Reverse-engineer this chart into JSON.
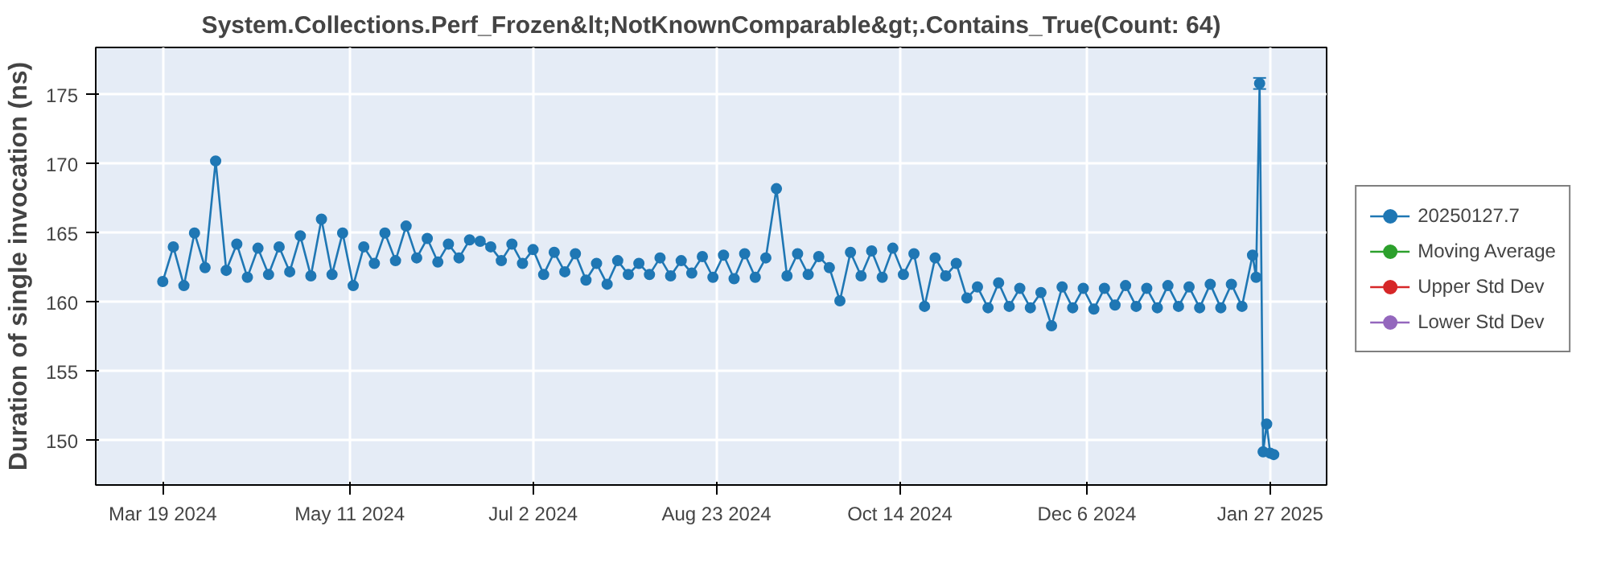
{
  "chart_data": {
    "type": "line",
    "title": "System.Collections.Perf_Frozen&lt;NotKnownComparable&gt;.Contains_True(Count: 64)",
    "ylabel": "Duration of single invocation (ns)",
    "xlim": [
      "2024-02-29",
      "2025-02-12"
    ],
    "xticks": [
      {
        "value": "2024-03-19",
        "label": "Mar 19 2024"
      },
      {
        "value": "2024-05-11",
        "label": "May 11 2024"
      },
      {
        "value": "2024-07-02",
        "label": "Jul 2 2024"
      },
      {
        "value": "2024-08-23",
        "label": "Aug 23 2024"
      },
      {
        "value": "2024-10-14",
        "label": "Oct 14 2024"
      },
      {
        "value": "2024-12-06",
        "label": "Dec 6 2024"
      },
      {
        "value": "2025-01-27",
        "label": "Jan 27 2025"
      }
    ],
    "ylim": [
      146.8,
      178.4
    ],
    "yticks": [
      150,
      155,
      160,
      165,
      170,
      175
    ],
    "grid": true,
    "legend": "right",
    "marker": "circle",
    "line_style": "solid",
    "x": [
      "2024-03-19",
      "2024-03-22",
      "2024-03-25",
      "2024-03-28",
      "2024-03-31",
      "2024-04-03",
      "2024-04-06",
      "2024-04-09",
      "2024-04-12",
      "2024-04-15",
      "2024-04-18",
      "2024-04-21",
      "2024-04-24",
      "2024-04-27",
      "2024-04-30",
      "2024-05-03",
      "2024-05-06",
      "2024-05-09",
      "2024-05-12",
      "2024-05-15",
      "2024-05-18",
      "2024-05-21",
      "2024-05-24",
      "2024-05-27",
      "2024-05-30",
      "2024-06-02",
      "2024-06-05",
      "2024-06-08",
      "2024-06-11",
      "2024-06-14",
      "2024-06-17",
      "2024-06-20",
      "2024-06-23",
      "2024-06-26",
      "2024-06-29",
      "2024-07-02",
      "2024-07-05",
      "2024-07-08",
      "2024-07-11",
      "2024-07-14",
      "2024-07-17",
      "2024-07-20",
      "2024-07-23",
      "2024-07-26",
      "2024-07-29",
      "2024-08-01",
      "2024-08-04",
      "2024-08-07",
      "2024-08-10",
      "2024-08-13",
      "2024-08-16",
      "2024-08-19",
      "2024-08-22",
      "2024-08-25",
      "2024-08-28",
      "2024-08-31",
      "2024-09-03",
      "2024-09-06",
      "2024-09-09",
      "2024-09-12",
      "2024-09-15",
      "2024-09-18",
      "2024-09-21",
      "2024-09-24",
      "2024-09-27",
      "2024-09-30",
      "2024-10-03",
      "2024-10-06",
      "2024-10-09",
      "2024-10-12",
      "2024-10-15",
      "2024-10-18",
      "2024-10-21",
      "2024-10-24",
      "2024-10-27",
      "2024-10-30",
      "2024-11-02",
      "2024-11-05",
      "2024-11-08",
      "2024-11-11",
      "2024-11-14",
      "2024-11-17",
      "2024-11-20",
      "2024-11-23",
      "2024-11-26",
      "2024-11-29",
      "2024-12-02",
      "2024-12-05",
      "2024-12-08",
      "2024-12-11",
      "2024-12-14",
      "2024-12-17",
      "2024-12-20",
      "2024-12-23",
      "2024-12-26",
      "2024-12-29",
      "2025-01-01",
      "2025-01-04",
      "2025-01-07",
      "2025-01-10",
      "2025-01-13",
      "2025-01-16",
      "2025-01-19",
      "2025-01-22",
      "2025-01-23",
      "2025-01-24",
      "2025-01-25",
      "2025-01-26",
      "2025-01-27",
      "2025-01-28"
    ],
    "series": [
      {
        "name": "20250127.7",
        "color": "#1f77b4",
        "values": [
          161.5,
          164.0,
          161.2,
          165.0,
          162.5,
          170.2,
          162.3,
          164.2,
          161.8,
          163.9,
          162.0,
          164.0,
          162.2,
          164.8,
          161.9,
          166.0,
          162.0,
          165.0,
          161.2,
          164.0,
          162.8,
          165.0,
          163.0,
          165.5,
          163.2,
          164.6,
          162.9,
          164.2,
          163.2,
          164.5,
          164.4,
          164.0,
          163.0,
          164.2,
          162.8,
          163.8,
          162.0,
          163.6,
          162.2,
          163.5,
          161.6,
          162.8,
          161.3,
          163.0,
          162.0,
          162.8,
          162.0,
          163.2,
          161.9,
          163.0,
          162.1,
          163.3,
          161.8,
          163.4,
          161.7,
          163.5,
          161.8,
          163.2,
          168.2,
          161.9,
          163.5,
          162.0,
          163.3,
          162.5,
          160.1,
          163.6,
          161.9,
          163.7,
          161.8,
          163.9,
          162.0,
          163.5,
          159.7,
          163.2,
          161.9,
          162.8,
          160.3,
          161.1,
          159.6,
          161.4,
          159.7,
          161.0,
          159.6,
          160.7,
          158.3,
          161.1,
          159.6,
          161.0,
          159.5,
          161.0,
          159.8,
          161.2,
          159.7,
          161.0,
          159.6,
          161.2,
          159.7,
          161.1,
          159.6,
          161.3,
          159.6,
          161.3,
          159.7,
          163.4,
          161.8,
          175.8,
          149.2,
          151.2,
          149.1,
          149.0
        ],
        "errors": [
          null,
          null,
          null,
          null,
          null,
          null,
          null,
          null,
          null,
          null,
          null,
          null,
          null,
          null,
          null,
          null,
          null,
          null,
          null,
          null,
          null,
          null,
          null,
          null,
          null,
          null,
          null,
          null,
          null,
          null,
          null,
          null,
          null,
          null,
          null,
          null,
          null,
          null,
          null,
          null,
          null,
          null,
          null,
          null,
          null,
          null,
          null,
          null,
          null,
          null,
          null,
          null,
          null,
          null,
          null,
          null,
          null,
          null,
          null,
          null,
          null,
          null,
          null,
          null,
          null,
          null,
          null,
          null,
          null,
          null,
          null,
          null,
          null,
          null,
          null,
          null,
          null,
          null,
          null,
          null,
          null,
          null,
          null,
          null,
          null,
          null,
          null,
          null,
          null,
          null,
          null,
          null,
          null,
          null,
          null,
          null,
          null,
          null,
          null,
          null,
          null,
          null,
          null,
          null,
          null,
          0.4,
          null,
          null,
          null,
          null
        ]
      },
      {
        "name": "Moving Average",
        "color": "#2ca02c",
        "values": [
          null,
          null,
          null,
          null,
          null,
          null,
          null,
          null,
          null,
          null,
          null,
          null,
          null,
          null,
          null,
          null,
          null,
          null,
          null,
          null,
          null,
          null,
          null,
          null,
          null,
          null,
          null,
          null,
          null,
          null,
          null,
          null,
          null,
          null,
          null,
          null,
          null,
          null,
          null,
          null,
          null,
          null,
          null,
          null,
          null,
          null,
          null,
          null,
          null,
          null,
          null,
          null,
          null,
          null,
          null,
          null,
          null,
          null,
          null,
          null,
          null,
          null,
          null,
          null,
          null,
          null,
          null,
          null,
          null,
          null,
          null,
          null,
          null,
          null,
          null,
          null,
          null,
          null,
          null,
          null,
          null,
          null,
          null,
          null,
          null,
          null,
          null,
          null,
          null,
          null,
          null,
          null,
          null,
          null,
          null,
          null,
          null,
          null,
          null,
          null,
          null,
          null,
          null,
          null,
          null,
          null,
          null,
          null,
          null,
          null
        ]
      },
      {
        "name": "Upper Std Dev",
        "color": "#d62728",
        "values": [
          null,
          null,
          null,
          null,
          null,
          null,
          null,
          null,
          null,
          null,
          null,
          null,
          null,
          null,
          null,
          null,
          null,
          null,
          null,
          null,
          null,
          null,
          null,
          null,
          null,
          null,
          null,
          null,
          null,
          null,
          null,
          null,
          null,
          null,
          null,
          null,
          null,
          null,
          null,
          null,
          null,
          null,
          null,
          null,
          null,
          null,
          null,
          null,
          null,
          null,
          null,
          null,
          null,
          null,
          null,
          null,
          null,
          null,
          null,
          null,
          null,
          null,
          null,
          null,
          null,
          null,
          null,
          null,
          null,
          null,
          null,
          null,
          null,
          null,
          null,
          null,
          null,
          null,
          null,
          null,
          null,
          null,
          null,
          null,
          null,
          null,
          null,
          null,
          null,
          null,
          null,
          null,
          null,
          null,
          null,
          null,
          null,
          null,
          null,
          null,
          null,
          null,
          null,
          null,
          null,
          null,
          null,
          null,
          null,
          null
        ]
      },
      {
        "name": "Lower Std Dev",
        "color": "#9467bd",
        "values": [
          null,
          null,
          null,
          null,
          null,
          null,
          null,
          null,
          null,
          null,
          null,
          null,
          null,
          null,
          null,
          null,
          null,
          null,
          null,
          null,
          null,
          null,
          null,
          null,
          null,
          null,
          null,
          null,
          null,
          null,
          null,
          null,
          null,
          null,
          null,
          null,
          null,
          null,
          null,
          null,
          null,
          null,
          null,
          null,
          null,
          null,
          null,
          null,
          null,
          null,
          null,
          null,
          null,
          null,
          null,
          null,
          null,
          null,
          null,
          null,
          null,
          null,
          null,
          null,
          null,
          null,
          null,
          null,
          null,
          null,
          null,
          null,
          null,
          null,
          null,
          null,
          null,
          null,
          null,
          null,
          null,
          null,
          null,
          null,
          null,
          null,
          null,
          null,
          null,
          null,
          null,
          null,
          null,
          null,
          null,
          null,
          null,
          null,
          null,
          null,
          null,
          null,
          null,
          null,
          null,
          null,
          null,
          null,
          null,
          null
        ]
      }
    ]
  }
}
